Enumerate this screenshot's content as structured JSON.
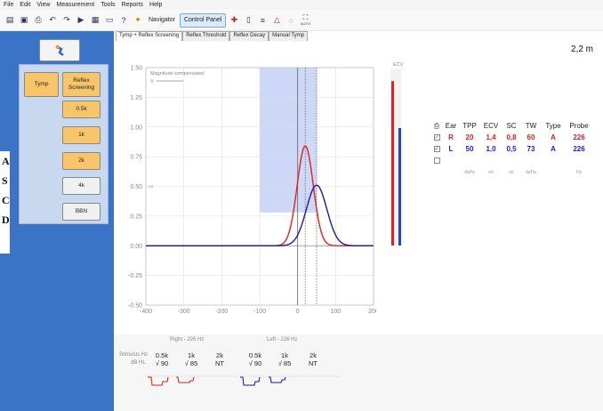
{
  "menu": {
    "items": [
      "File",
      "Edit",
      "View",
      "Measurement",
      "Tools",
      "Reports",
      "Help"
    ]
  },
  "toolbar": {
    "navigator": "Navigator",
    "control_panel": "Control Panel",
    "auto": "AUTO"
  },
  "tabs": [
    "Tymp + Reflex Screening",
    "Reflex Threshold",
    "Reflex Decay",
    "Manual Tymp"
  ],
  "left_panel": {
    "edge_letters": [
      "A",
      "S",
      "C",
      "D"
    ],
    "tymp": "Tymp",
    "reflex": "Reflex Screening",
    "freqs": [
      "0.5k",
      "1k",
      "2k",
      "4k",
      "BBN"
    ]
  },
  "top_right_value": "2,2 m",
  "chart_data": {
    "type": "line",
    "annotation": "Magnitude compensated",
    "legend_item": "V",
    "x_unit": "daPa",
    "y_unit": "ml",
    "xlim": [
      -400,
      200
    ],
    "ylim": [
      -0.5,
      1.5
    ],
    "xticks": [
      "-400",
      "-300",
      "-200",
      "-100",
      "0",
      "100",
      "200"
    ],
    "yticks": [
      "1.50",
      "1.25",
      "1.00",
      "0.75",
      "0.50",
      "0.25",
      "0.00",
      "-0.25",
      "-0.50"
    ],
    "shaded_x_range": [
      -100,
      50
    ],
    "shaded_y_range": [
      0.28,
      1.5
    ],
    "vlines": [
      0,
      20,
      50
    ],
    "series": [
      {
        "name": "R",
        "color": "#e02020",
        "peak_x": 20,
        "peak_y": 0.84,
        "width": 30
      },
      {
        "name": "L",
        "color": "#1a1aa8",
        "peak_x": 50,
        "peak_y": 0.51,
        "width": 38
      }
    ],
    "ecv": {
      "label": "ECV",
      "right": 1.4,
      "left": 1.0
    }
  },
  "results": {
    "headers": [
      "Ear",
      "TPP",
      "ECV",
      "SC",
      "TW",
      "Type",
      "Probe"
    ],
    "rows": [
      {
        "ear": "R",
        "tpp": "20",
        "ecv": "1,4",
        "sc": "0,8",
        "tw": "60",
        "type": "A",
        "probe": "226"
      },
      {
        "ear": "L",
        "tpp": "50",
        "ecv": "1,0",
        "sc": "0,5",
        "tw": "73",
        "type": "A",
        "probe": "226"
      }
    ],
    "units": [
      "daPa",
      "ml",
      "ml",
      "daPa",
      "Hz"
    ]
  },
  "stimulus": {
    "right_title": "Right - 226 Hz",
    "left_title": "Left - 226 Hz",
    "row1_label": "Stimulus Hz",
    "row2_label": "dB HL",
    "right": [
      {
        "hz": "0.5k",
        "val": "√ 90"
      },
      {
        "hz": "1k",
        "val": "√ 85"
      },
      {
        "hz": "2k",
        "val": "NT"
      }
    ],
    "left": [
      {
        "hz": "0.5k",
        "val": "√ 90"
      },
      {
        "hz": "1k",
        "val": "√ 85"
      },
      {
        "hz": "2k",
        "val": "NT"
      }
    ]
  }
}
